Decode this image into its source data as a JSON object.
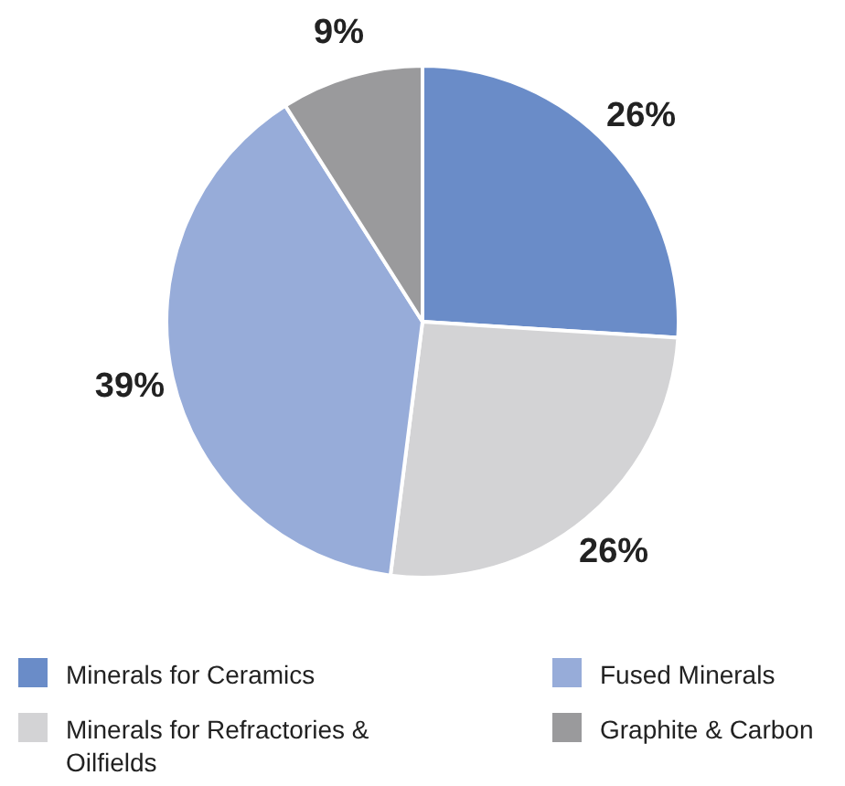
{
  "chart_data": {
    "type": "pie",
    "categories": [
      "Minerals for Ceramics",
      "Minerals for Refractories & Oilfields",
      "Fused Minerals",
      "Graphite & Carbon"
    ],
    "values": [
      26,
      26,
      39,
      9
    ],
    "colors": [
      "#6a8cc8",
      "#d3d3d5",
      "#97acd9",
      "#9a9a9c"
    ],
    "value_labels": [
      "26%",
      "26%",
      "39%",
      "9%"
    ],
    "legend": "bottom"
  }
}
